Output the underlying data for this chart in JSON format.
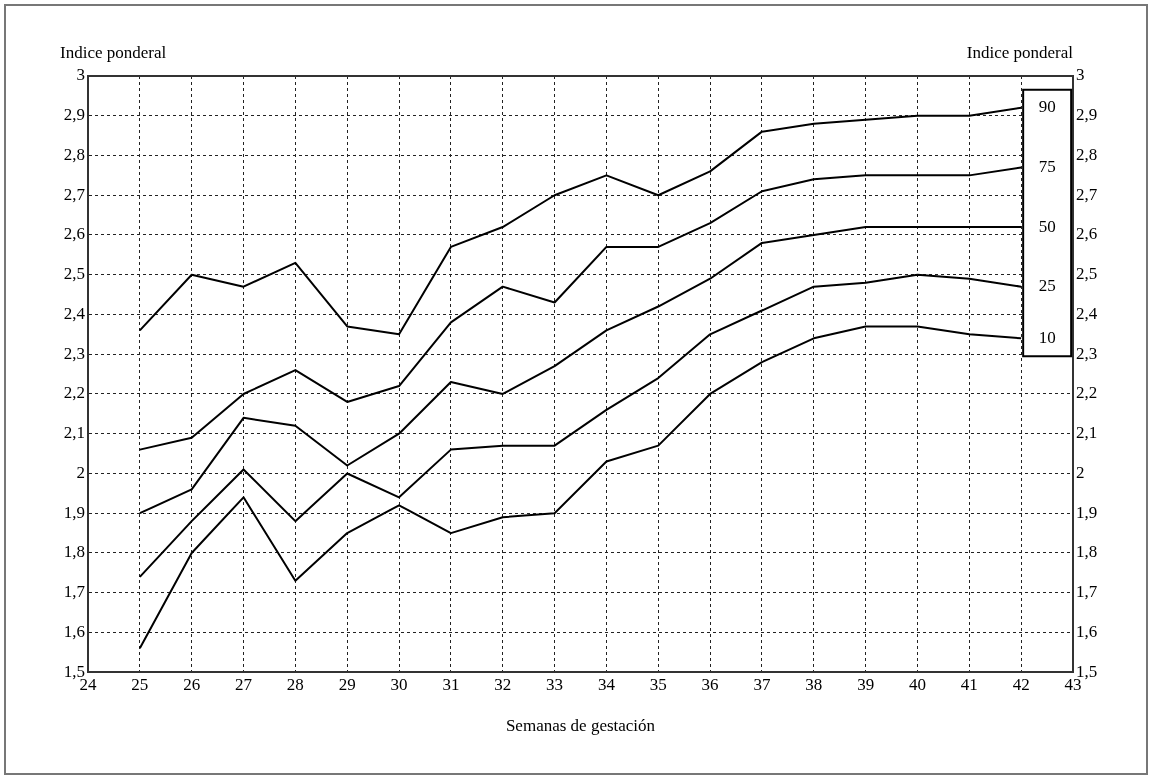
{
  "chart_data": {
    "type": "line",
    "xlabel": "Semanas de gestación",
    "ylabel": "Indice ponderal",
    "y2label": "Indice ponderal",
    "x": [
      25,
      26,
      27,
      28,
      29,
      30,
      31,
      32,
      33,
      34,
      35,
      36,
      37,
      38,
      39,
      40,
      41,
      42
    ],
    "xlim": [
      24,
      43
    ],
    "xticks": [
      24,
      25,
      26,
      27,
      28,
      29,
      30,
      31,
      32,
      33,
      34,
      35,
      36,
      37,
      38,
      39,
      40,
      41,
      42,
      43
    ],
    "ylim": [
      1.5,
      3
    ],
    "yticks": [
      {
        "value": 1.5,
        "label": "1,5"
      },
      {
        "value": 1.6,
        "label": "1,6"
      },
      {
        "value": 1.7,
        "label": "1,7"
      },
      {
        "value": 1.8,
        "label": "1,8"
      },
      {
        "value": 1.9,
        "label": "1,9"
      },
      2,
      {
        "value": 2.1,
        "label": "2,1"
      },
      {
        "value": 2.2,
        "label": "2,2"
      },
      {
        "value": 2.3,
        "label": "2,3"
      },
      {
        "value": 2.4,
        "label": "2,4"
      },
      {
        "value": 2.5,
        "label": "2,5"
      },
      {
        "value": 2.6,
        "label": "2,6"
      },
      {
        "value": 2.7,
        "label": "2,7"
      },
      {
        "value": 2.8,
        "label": "2,8"
      },
      {
        "value": 2.9,
        "label": "2,9"
      },
      3
    ],
    "y2lim": [
      1.5,
      3
    ],
    "y2ticks": [
      {
        "value": 1.5,
        "label": "1,5"
      },
      {
        "value": 1.6,
        "label": "1,6"
      },
      {
        "value": 1.7,
        "label": "1,7"
      },
      {
        "value": 1.8,
        "label": "1,8"
      },
      {
        "value": 1.9,
        "label": "1,9"
      },
      2,
      {
        "value": 2.1,
        "label": "2,1"
      },
      {
        "value": 2.2,
        "label": "2,2"
      },
      {
        "value": 2.3,
        "label": "2,3"
      },
      {
        "value": 2.4,
        "label": "2,4"
      },
      {
        "value": 2.5,
        "label": "2,5"
      },
      {
        "value": 2.6,
        "label": "2,6"
      },
      {
        "value": 2.7,
        "label": "2,7"
      },
      {
        "value": 2.8,
        "label": "2,8"
      },
      {
        "value": 2.9,
        "label": "2,9"
      },
      3
    ],
    "grid": true,
    "legend": "right",
    "line_style": "solid",
    "series": [
      {
        "name": "90",
        "color": "#000000",
        "values": [
          2.36,
          2.5,
          2.47,
          2.53,
          2.37,
          2.35,
          2.57,
          2.62,
          2.7,
          2.75,
          2.7,
          2.76,
          2.86,
          2.88,
          2.89,
          2.9,
          2.9,
          2.92
        ]
      },
      {
        "name": "75",
        "color": "#000000",
        "values": [
          2.06,
          2.09,
          2.2,
          2.26,
          2.18,
          2.22,
          2.38,
          2.47,
          2.43,
          2.57,
          2.57,
          2.63,
          2.71,
          2.74,
          2.75,
          2.75,
          2.75,
          2.77
        ]
      },
      {
        "name": "50",
        "color": "#000000",
        "values": [
          1.9,
          1.96,
          2.14,
          2.12,
          2.02,
          2.1,
          2.23,
          2.2,
          2.27,
          2.36,
          2.42,
          2.49,
          2.58,
          2.6,
          2.62,
          2.62,
          2.62,
          2.62
        ]
      },
      {
        "name": "25",
        "color": "#000000",
        "values": [
          1.74,
          1.88,
          2.01,
          1.88,
          2.0,
          1.94,
          2.06,
          2.07,
          2.07,
          2.16,
          2.24,
          2.35,
          2.41,
          2.47,
          2.48,
          2.5,
          2.49,
          2.47
        ]
      },
      {
        "name": "10",
        "color": "#000000",
        "values": [
          1.56,
          1.8,
          1.94,
          1.73,
          1.85,
          1.92,
          1.85,
          1.89,
          1.9,
          2.03,
          2.07,
          2.2,
          2.28,
          2.34,
          2.37,
          2.37,
          2.35,
          2.34
        ]
      }
    ]
  }
}
